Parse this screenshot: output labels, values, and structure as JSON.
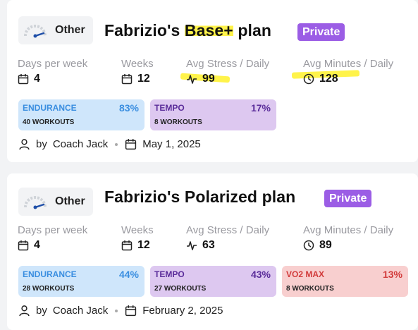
{
  "plans": [
    {
      "badge": "Other",
      "title_pre": "Fabrizio's ",
      "title_hl": "Base+",
      "title_post": " plan",
      "privacy": "Private",
      "stats": {
        "days_label": "Days per week",
        "days": "4",
        "weeks_label": "Weeks",
        "weeks": "12",
        "stress_label": "Avg Stress / Daily",
        "stress": "99",
        "minutes_label": "Avg Minutes / Daily",
        "minutes": "128"
      },
      "tags": [
        {
          "name": "ENDURANCE",
          "pct": "83%",
          "count": "40 WORKOUTS"
        },
        {
          "name": "TEMPO",
          "pct": "17%",
          "count": "8 WORKOUTS"
        }
      ],
      "by": "by",
      "coach": "Coach Jack",
      "date": "May 1, 2025"
    },
    {
      "badge": "Other",
      "title": "Fabrizio's Polarized plan",
      "privacy": "Private",
      "stats": {
        "days_label": "Days per week",
        "days": "4",
        "weeks_label": "Weeks",
        "weeks": "12",
        "stress_label": "Avg Stress / Daily",
        "stress": "63",
        "minutes_label": "Avg Minutes / Daily",
        "minutes": "89"
      },
      "tags": [
        {
          "name": "ENDURANCE",
          "pct": "44%",
          "count": "28 WORKOUTS"
        },
        {
          "name": "TEMPO",
          "pct": "43%",
          "count": "27 WORKOUTS"
        },
        {
          "name": "VO2 MAX",
          "pct": "13%",
          "count": "8 WORKOUTS"
        }
      ],
      "by": "by",
      "coach": "Coach Jack",
      "date": "February 2, 2025"
    }
  ],
  "colors": {
    "highlight": "#fff34a",
    "private": "#9b5de5",
    "endurance_bg": "#cfe6fb",
    "tempo_bg": "#ddc8f0",
    "vo2_bg": "#f8cfcf"
  },
  "icons": [
    "gauge-icon",
    "calendar-icon",
    "activity-icon",
    "clock-icon",
    "user-icon"
  ]
}
